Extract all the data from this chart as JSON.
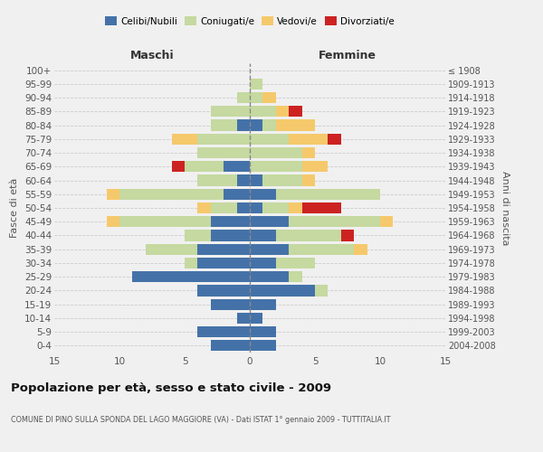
{
  "age_groups": [
    "0-4",
    "5-9",
    "10-14",
    "15-19",
    "20-24",
    "25-29",
    "30-34",
    "35-39",
    "40-44",
    "45-49",
    "50-54",
    "55-59",
    "60-64",
    "65-69",
    "70-74",
    "75-79",
    "80-84",
    "85-89",
    "90-94",
    "95-99",
    "100+"
  ],
  "birth_years": [
    "2004-2008",
    "1999-2003",
    "1994-1998",
    "1989-1993",
    "1984-1988",
    "1979-1983",
    "1974-1978",
    "1969-1973",
    "1964-1968",
    "1959-1963",
    "1954-1958",
    "1949-1953",
    "1944-1948",
    "1939-1943",
    "1934-1938",
    "1929-1933",
    "1924-1928",
    "1919-1923",
    "1914-1918",
    "1909-1913",
    "≤ 1908"
  ],
  "maschi": {
    "celibi": [
      3,
      4,
      1,
      3,
      4,
      9,
      4,
      4,
      3,
      3,
      1,
      2,
      1,
      2,
      0,
      0,
      1,
      0,
      0,
      0,
      0
    ],
    "coniugati": [
      0,
      0,
      0,
      0,
      0,
      0,
      1,
      4,
      2,
      7,
      2,
      8,
      3,
      3,
      4,
      4,
      2,
      3,
      1,
      0,
      0
    ],
    "vedovi": [
      0,
      0,
      0,
      0,
      0,
      0,
      0,
      0,
      0,
      1,
      1,
      1,
      0,
      0,
      0,
      2,
      0,
      0,
      0,
      0,
      0
    ],
    "divorziati": [
      0,
      0,
      0,
      0,
      0,
      0,
      0,
      0,
      0,
      0,
      0,
      0,
      0,
      1,
      0,
      0,
      0,
      0,
      0,
      0,
      0
    ]
  },
  "femmine": {
    "nubili": [
      2,
      2,
      1,
      2,
      5,
      3,
      2,
      3,
      2,
      3,
      1,
      2,
      1,
      0,
      0,
      0,
      1,
      0,
      0,
      0,
      0
    ],
    "coniugate": [
      0,
      0,
      0,
      0,
      1,
      1,
      3,
      5,
      5,
      7,
      2,
      8,
      3,
      4,
      4,
      3,
      1,
      2,
      1,
      1,
      0
    ],
    "vedove": [
      0,
      0,
      0,
      0,
      0,
      0,
      0,
      1,
      0,
      1,
      1,
      0,
      1,
      2,
      1,
      3,
      3,
      1,
      1,
      0,
      0
    ],
    "divorziate": [
      0,
      0,
      0,
      0,
      0,
      0,
      0,
      0,
      1,
      0,
      3,
      0,
      0,
      0,
      0,
      1,
      0,
      1,
      0,
      0,
      0
    ]
  },
  "colors": {
    "celibi": "#4472a8",
    "coniugati": "#c5d9a0",
    "vedovi": "#f5c96b",
    "divorziati": "#cc2222"
  },
  "xlim": 15,
  "title": "Popolazione per età, sesso e stato civile - 2009",
  "subtitle": "COMUNE DI PINO SULLA SPONDA DEL LAGO MAGGIORE (VA) - Dati ISTAT 1° gennaio 2009 - TUTTITALIA.IT",
  "xlabel_left": "Maschi",
  "xlabel_right": "Femmine",
  "ylabel_left": "Fasce di età",
  "ylabel_right": "Anni di nascita",
  "legend_labels": [
    "Celibi/Nubili",
    "Coniugati/e",
    "Vedovi/e",
    "Divorziati/e"
  ],
  "bg_color": "#f0f0f0"
}
